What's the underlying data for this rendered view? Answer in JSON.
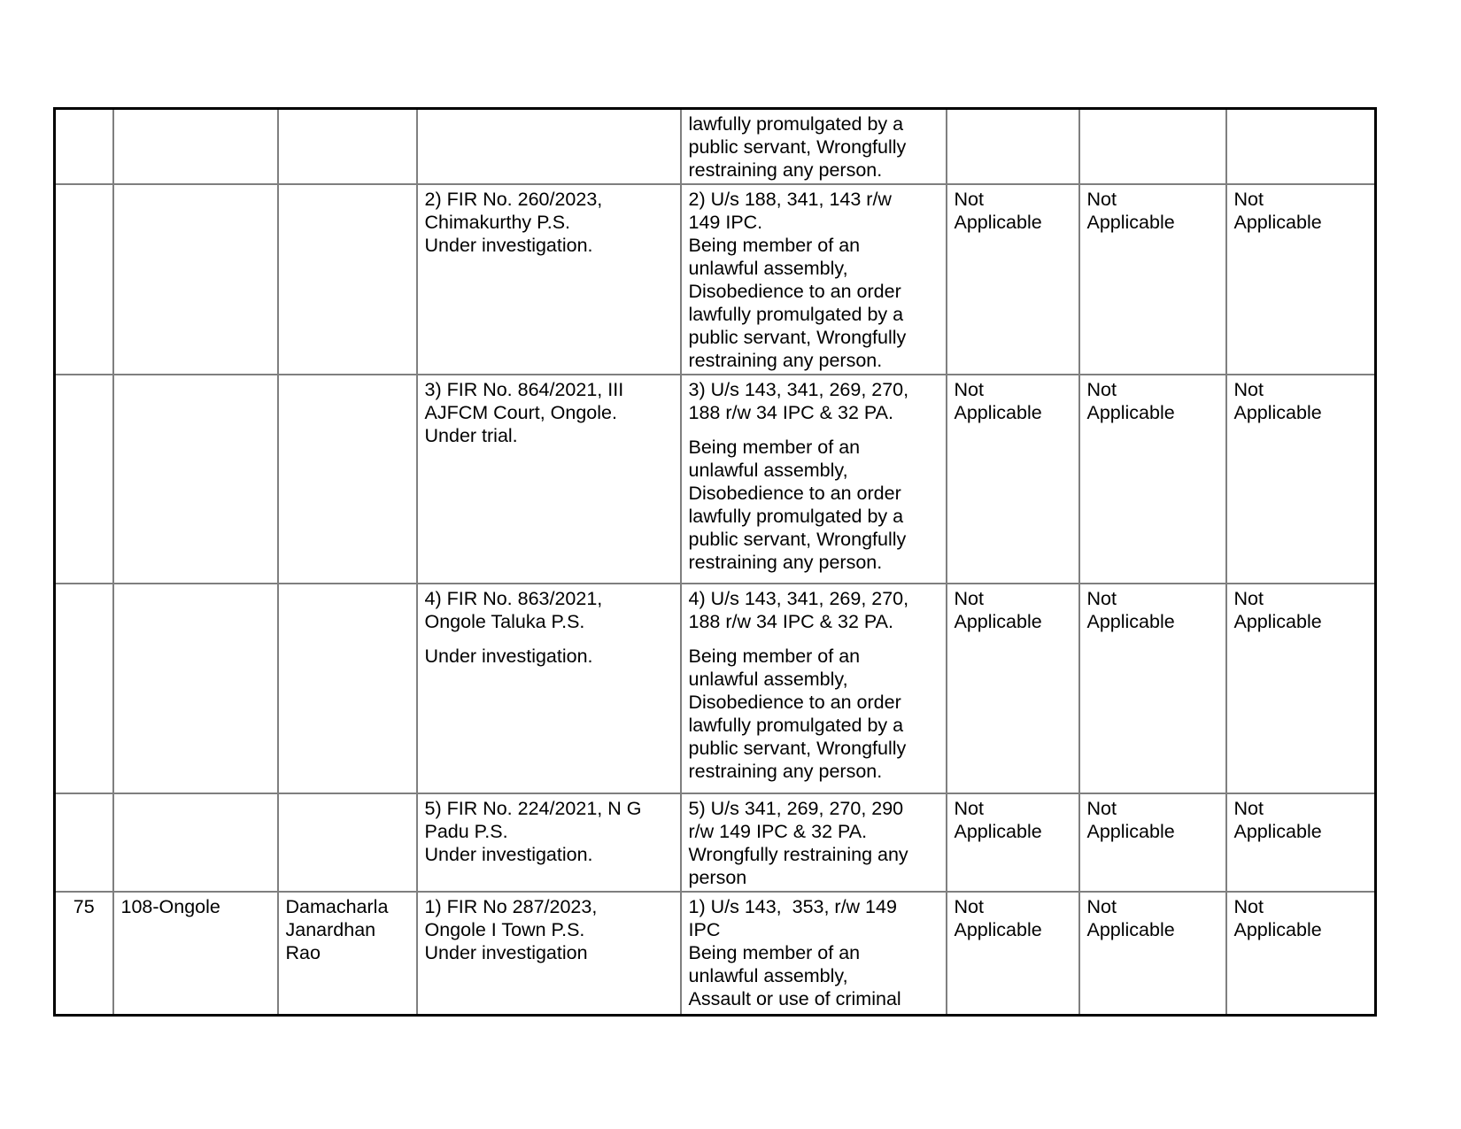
{
  "document": {
    "kind": "table-page-continuation",
    "page_note": "continuation page; no header row visible"
  },
  "colors": {
    "grid_line": "#7f7f7f",
    "outer_border": "#000000",
    "text": "#000000",
    "background": "#ffffff"
  },
  "table": {
    "columns": [
      {
        "name": "serial-number"
      },
      {
        "name": "constituency"
      },
      {
        "name": "candidate-name"
      },
      {
        "name": "fir-details"
      },
      {
        "name": "sections-and-description"
      },
      {
        "name": "status-col-1"
      },
      {
        "name": "status-col-2"
      },
      {
        "name": "status-col-3"
      }
    ],
    "rows": [
      {
        "cells": [
          {
            "paragraphs": []
          },
          {
            "paragraphs": []
          },
          {
            "paragraphs": []
          },
          {
            "paragraphs": []
          },
          {
            "paragraphs": [
              "lawfully promulgated by a\npublic servant, Wrongfully\nrestraining any person."
            ]
          },
          {
            "paragraphs": []
          },
          {
            "paragraphs": []
          },
          {
            "paragraphs": []
          }
        ]
      },
      {
        "cells": [
          {
            "paragraphs": []
          },
          {
            "paragraphs": []
          },
          {
            "paragraphs": []
          },
          {
            "paragraphs": [
              "2) FIR No. 260/2023,\nChimakurthy P.S.\nUnder investigation."
            ]
          },
          {
            "paragraphs": [
              "2) U/s 188, 341, 143 r/w\n149 IPC.\nBeing member of an\nunlawful assembly,\nDisobedience to an order\nlawfully promulgated by a\npublic servant, Wrongfully\nrestraining any person."
            ]
          },
          {
            "paragraphs": [
              "Not\nApplicable"
            ]
          },
          {
            "paragraphs": [
              "Not\nApplicable"
            ]
          },
          {
            "paragraphs": [
              "Not\nApplicable"
            ]
          }
        ]
      },
      {
        "cells": [
          {
            "paragraphs": []
          },
          {
            "paragraphs": []
          },
          {
            "paragraphs": []
          },
          {
            "paragraphs": [
              "3) FIR No. 864/2021, III\nAJFCM Court, Ongole.\nUnder trial."
            ]
          },
          {
            "paragraphs": [
              "3) U/s 143, 341, 269, 270,\n188 r/w 34 IPC & 32 PA.",
              "Being member of an\nunlawful assembly,\nDisobedience to an order\nlawfully promulgated by a\npublic servant, Wrongfully\nrestraining any person."
            ]
          },
          {
            "paragraphs": [
              "Not\nApplicable"
            ]
          },
          {
            "paragraphs": [
              "Not\nApplicable"
            ]
          },
          {
            "paragraphs": [
              "Not\nApplicable"
            ]
          }
        ]
      },
      {
        "cells": [
          {
            "paragraphs": []
          },
          {
            "paragraphs": []
          },
          {
            "paragraphs": []
          },
          {
            "paragraphs": [
              "4) FIR No. 863/2021,\nOngole Taluka P.S.",
              "Under investigation."
            ]
          },
          {
            "paragraphs": [
              "4) U/s 143, 341, 269, 270,\n188 r/w 34 IPC & 32 PA.",
              "Being member of an\nunlawful assembly,\nDisobedience to an order\nlawfully promulgated by a\npublic servant, Wrongfully\nrestraining any person."
            ]
          },
          {
            "paragraphs": [
              "Not\nApplicable"
            ]
          },
          {
            "paragraphs": [
              "Not\nApplicable"
            ]
          },
          {
            "paragraphs": [
              "Not\nApplicable"
            ]
          }
        ]
      },
      {
        "cells": [
          {
            "paragraphs": []
          },
          {
            "paragraphs": []
          },
          {
            "paragraphs": []
          },
          {
            "paragraphs": [
              "5) FIR No. 224/2021, N G\nPadu P.S.\nUnder investigation."
            ]
          },
          {
            "paragraphs": [
              "5) U/s 341, 269, 270, 290\nr/w 149 IPC & 32 PA.\nWrongfully restraining any\nperson"
            ]
          },
          {
            "paragraphs": [
              "Not\nApplicable"
            ]
          },
          {
            "paragraphs": [
              "Not\nApplicable"
            ]
          },
          {
            "paragraphs": [
              "Not\nApplicable"
            ]
          }
        ]
      },
      {
        "cells": [
          {
            "paragraphs": [
              "75"
            ]
          },
          {
            "paragraphs": [
              "108-Ongole"
            ]
          },
          {
            "paragraphs": [
              "Damacharla\nJanardhan\nRao"
            ]
          },
          {
            "paragraphs": [
              "1) FIR No 287/2023,\nOngole I Town P.S.\nUnder investigation"
            ]
          },
          {
            "paragraphs": [
              "1) U/s 143,  353, r/w 149\nIPC\nBeing member of an\nunlawful assembly,\nAssault or use of criminal"
            ]
          },
          {
            "paragraphs": [
              "Not\nApplicable"
            ]
          },
          {
            "paragraphs": [
              "Not\nApplicable"
            ]
          },
          {
            "paragraphs": [
              "Not\nApplicable"
            ]
          }
        ]
      }
    ]
  }
}
